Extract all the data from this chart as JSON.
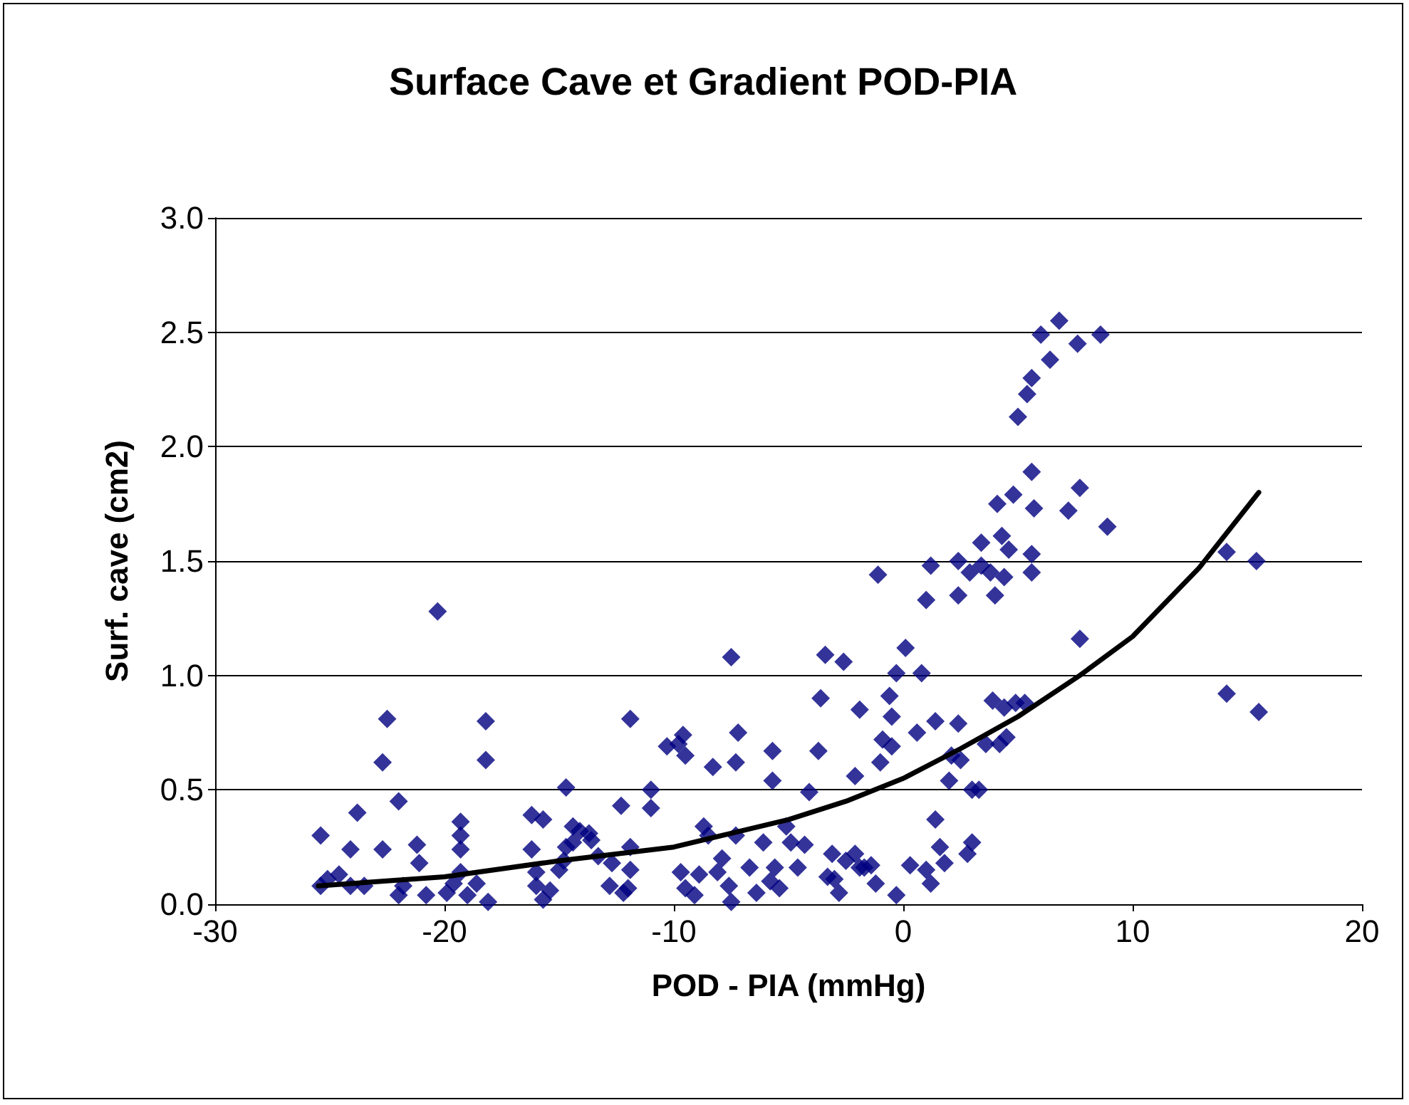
{
  "chart_data": {
    "type": "scatter",
    "title": "Surface Cave et Gradient POD-PIA",
    "xlabel": "POD - PIA (mmHg)",
    "ylabel": "Surf. cave (cm2)",
    "xlim": [
      -30,
      20
    ],
    "xticks": [
      -30,
      -20,
      -10,
      0,
      10,
      20
    ],
    "ylim": [
      0,
      3
    ],
    "yticks": [
      {
        "value": 0,
        "label": "0.0"
      },
      {
        "value": 0.5,
        "label": "0.5"
      },
      {
        "value": 1,
        "label": "1.0"
      },
      {
        "value": 1.5,
        "label": "1.5"
      },
      {
        "value": 2,
        "label": "2.0"
      },
      {
        "value": 2.5,
        "label": "2.5"
      },
      {
        "value": 3,
        "label": "3.0"
      }
    ],
    "grid": "y",
    "marker": "diamond",
    "series": [
      {
        "color": "#000080",
        "x": [
          -25.4,
          -25.4,
          -25.1,
          -24.6,
          -24.1,
          -24.1,
          -23.8,
          -23.5,
          -22.7,
          -22.7,
          -22.5,
          -22.0,
          -22.0,
          -21.8,
          -21.2,
          -21.1,
          -20.8,
          -20.3,
          -19.9,
          -19.6,
          -19.3,
          -19.3,
          -19.3,
          -19.3,
          -19.0,
          -18.6,
          -18.2,
          -18.2,
          -18.1,
          -16.2,
          -15.7,
          -16.2,
          -16.0,
          -16.0,
          -15.7,
          -15.4,
          -15.0,
          -14.8,
          -14.7,
          -14.7,
          -14.4,
          -14.4,
          -14.1,
          -13.7,
          -13.6,
          -13.3,
          -12.8,
          -12.7,
          -12.3,
          -12.2,
          -12.0,
          -11.9,
          -11.9,
          -11.9,
          -11.0,
          -11.0,
          -10.3,
          -9.8,
          -9.6,
          -9.5,
          -9.7,
          -9.5,
          -9.1,
          -8.9,
          -8.7,
          -8.5,
          -8.3,
          -8.1,
          -7.9,
          -7.6,
          -7.5,
          -7.5,
          -7.3,
          -7.2,
          -7.3,
          -6.7,
          -6.4,
          -6.1,
          -5.8,
          -5.7,
          -5.7,
          -5.6,
          -5.4,
          -5.1,
          -4.9,
          -4.6,
          -4.3,
          -4.1,
          -3.7,
          -3.6,
          -3.3,
          -3.1,
          -3.4,
          -3.0,
          -2.8,
          -2.5,
          -2.6,
          -2.1,
          -1.9,
          -2.1,
          -1.7,
          -1.9,
          -1.4,
          -1.2,
          -1.1,
          -1.0,
          -0.9,
          -0.6,
          -0.3,
          -0.5,
          -0.5,
          -0.3,
          0.1,
          0.3,
          0.6,
          0.8,
          1.0,
          1.2,
          1.0,
          1.2,
          1.4,
          1.4,
          1.6,
          1.8,
          2.0,
          2.1,
          2.4,
          2.4,
          2.4,
          2.5,
          2.8,
          3.0,
          3.0,
          2.9,
          3.4,
          3.3,
          3.4,
          3.6,
          4.1,
          4.3,
          4.4,
          4.8,
          5.0,
          5.4,
          5.6,
          5.6,
          5.6,
          5.6,
          5.7,
          6.0,
          6.4,
          6.8,
          7.2,
          7.6,
          7.7,
          7.7,
          8.6,
          8.9,
          4.2,
          4.5,
          4.4,
          4.9,
          5.3,
          3.9,
          3.8,
          4.6,
          4.0,
          14.1,
          15.4,
          14.1,
          15.5
        ],
        "values": [
          0.3,
          0.08,
          0.11,
          0.13,
          0.08,
          0.24,
          0.4,
          0.08,
          0.24,
          0.62,
          0.81,
          0.45,
          0.04,
          0.08,
          0.26,
          0.18,
          0.04,
          1.28,
          0.05,
          0.09,
          0.36,
          0.3,
          0.24,
          0.14,
          0.04,
          0.09,
          0.8,
          0.63,
          0.01,
          0.39,
          0.37,
          0.24,
          0.14,
          0.08,
          0.02,
          0.06,
          0.15,
          0.19,
          0.25,
          0.51,
          0.34,
          0.27,
          0.32,
          0.31,
          0.28,
          0.21,
          0.08,
          0.18,
          0.43,
          0.05,
          0.07,
          0.15,
          0.25,
          0.81,
          0.5,
          0.42,
          0.69,
          0.7,
          0.74,
          0.65,
          0.14,
          0.07,
          0.04,
          0.13,
          0.34,
          0.3,
          0.6,
          0.14,
          0.2,
          0.08,
          0.01,
          1.08,
          0.62,
          0.75,
          0.3,
          0.16,
          0.05,
          0.27,
          0.1,
          0.54,
          0.67,
          0.16,
          0.07,
          0.34,
          0.27,
          0.16,
          0.26,
          0.49,
          0.67,
          0.9,
          0.12,
          0.22,
          1.09,
          0.11,
          0.05,
          0.19,
          1.06,
          0.22,
          0.16,
          0.56,
          0.16,
          0.85,
          0.17,
          0.09,
          1.44,
          0.62,
          0.72,
          0.91,
          0.04,
          0.69,
          0.82,
          1.01,
          1.12,
          0.17,
          0.75,
          1.01,
          0.15,
          0.09,
          1.33,
          1.48,
          0.8,
          0.37,
          0.25,
          0.18,
          0.54,
          0.65,
          1.5,
          0.79,
          1.35,
          0.63,
          0.22,
          0.27,
          0.5,
          1.45,
          1.48,
          0.5,
          1.58,
          0.7,
          1.75,
          1.61,
          1.43,
          1.79,
          2.13,
          2.23,
          2.3,
          1.89,
          1.53,
          1.45,
          1.73,
          2.49,
          2.38,
          2.55,
          1.72,
          2.45,
          1.82,
          1.16,
          2.49,
          1.65,
          0.7,
          0.73,
          0.86,
          0.88,
          0.88,
          0.89,
          1.45,
          1.55,
          1.35,
          1.54,
          1.5,
          0.92,
          0.84
        ]
      },
      {
        "type": "line",
        "color": "#000000",
        "marker": "none",
        "line_style": "solid",
        "x": [
          -25.5,
          -20,
          -15,
          -10,
          -7.5,
          -5,
          -2.5,
          0,
          2.5,
          5,
          7.7,
          10,
          12.9,
          15.5
        ],
        "values": [
          0.08,
          0.12,
          0.19,
          0.25,
          0.31,
          0.37,
          0.45,
          0.55,
          0.68,
          0.82,
          1.0,
          1.17,
          1.47,
          1.8
        ]
      }
    ]
  }
}
